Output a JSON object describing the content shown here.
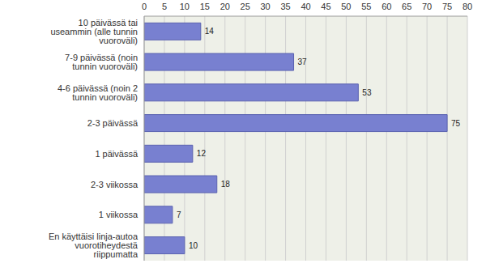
{
  "chart_data": {
    "type": "bar",
    "orientation": "horizontal",
    "categories": [
      "10 päivässä tai useammin (alle tunnin vuoroväli)",
      "7-9 päivässä (noin tunnin vuoroväli)",
      "4-6 päivässä (noin 2 tunnin vuoroväli)",
      "2-3 päivässä",
      "1 päivässä",
      "2-3 viikossa",
      "1 viikossa",
      "En käyttäisi linja-autoa vuorotiheydestä riippumatta"
    ],
    "values": [
      14,
      37,
      53,
      75,
      12,
      18,
      7,
      10
    ],
    "color": "#7880d0",
    "xlim": [
      0,
      80
    ],
    "xticks": [
      0,
      5,
      10,
      15,
      20,
      25,
      30,
      35,
      40,
      45,
      50,
      55,
      60,
      65,
      70,
      75,
      80
    ],
    "grid": true,
    "data_labels": true
  }
}
